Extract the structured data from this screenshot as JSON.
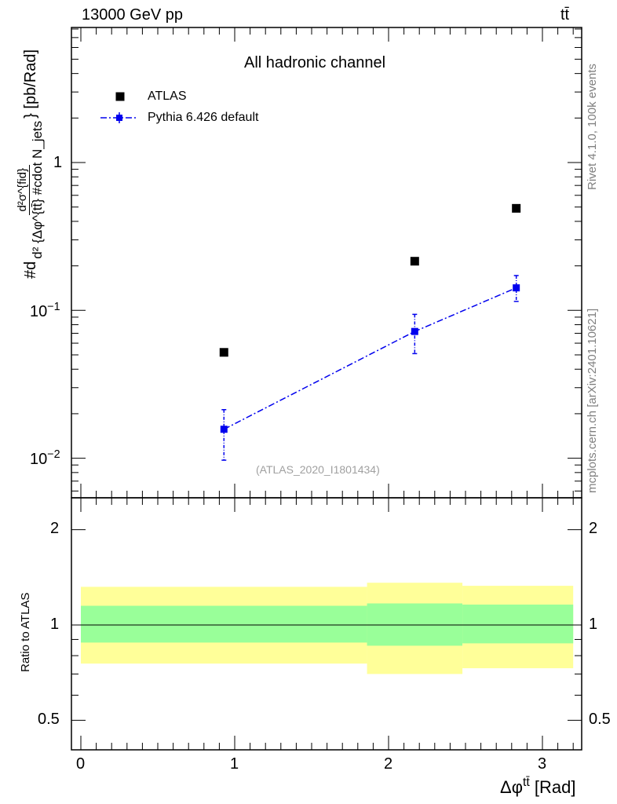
{
  "header": {
    "left": "13000 GeV pp",
    "right": "tt̄"
  },
  "side": {
    "rivet": "Rivet 4.1.0,  100k events",
    "source": "mcplots.cern.ch [arXiv:2401.10621]"
  },
  "main": {
    "title": "All hadronic channel",
    "watermark": "(ATLAS_2020_I1801434)",
    "ylabel": {
      "prefix": "#d",
      "frac_top": "d²σ^{fid}",
      "frac_bottom": "d² {Δφ^{tt̄} #cdot N_jets",
      "suffix": "} [pb/Rad]"
    },
    "yticks": {
      "one": "1",
      "tenth_base": "10",
      "tenth_exp": "−1",
      "hundredth_base": "10",
      "hundredth_exp": "−2"
    }
  },
  "ratio": {
    "ylabel": "Ratio to ATLAS",
    "ticks": [
      "2",
      "1",
      "0.5"
    ]
  },
  "xaxis": {
    "ticks": [
      "0",
      "1",
      "2",
      "3"
    ],
    "label_main": "Δφ",
    "label_sup": "tt̄",
    "label_unit": " [Rad]"
  },
  "legend": {
    "data": "ATLAS",
    "mc": "Pythia 6.426 default"
  },
  "colors": {
    "data": "#000000",
    "mc": "#0000ee",
    "band_inner": "#99ff99",
    "band_outer": "#ffff99"
  },
  "chart_data": {
    "type": "scatter",
    "log_y": true,
    "ylim": [
      0.0055,
      7.0
    ],
    "xlim": [
      -0.06,
      3.26
    ],
    "series": [
      {
        "name": "ATLAS",
        "x": [
          0.93,
          2.17,
          2.83
        ],
        "y": [
          0.052,
          0.215,
          0.49
        ]
      },
      {
        "name": "Pythia 6.426 default",
        "x": [
          0.93,
          2.17,
          2.83
        ],
        "y": [
          0.0157,
          0.072,
          0.142
        ],
        "yerr_low": [
          0.006,
          0.021,
          0.027
        ],
        "yerr_high": [
          0.0056,
          0.022,
          0.03
        ],
        "xbins": [
          [
            0.0,
            1.86
          ],
          [
            1.86,
            2.48
          ],
          [
            2.48,
            3.2
          ]
        ]
      }
    ],
    "ratio": {
      "ylabel": "Ratio to ATLAS",
      "ylim": [
        0.42,
        2.5
      ],
      "bins": [
        [
          0.0,
          1.86
        ],
        [
          1.86,
          2.48
        ],
        [
          2.48,
          3.2
        ]
      ],
      "inner_low": [
        0.88,
        0.86,
        0.875
      ],
      "inner_high": [
        1.15,
        1.17,
        1.16
      ],
      "outer_low": [
        0.755,
        0.7,
        0.73
      ],
      "outer_high": [
        1.32,
        1.36,
        1.33
      ],
      "reference": 1.0
    }
  }
}
